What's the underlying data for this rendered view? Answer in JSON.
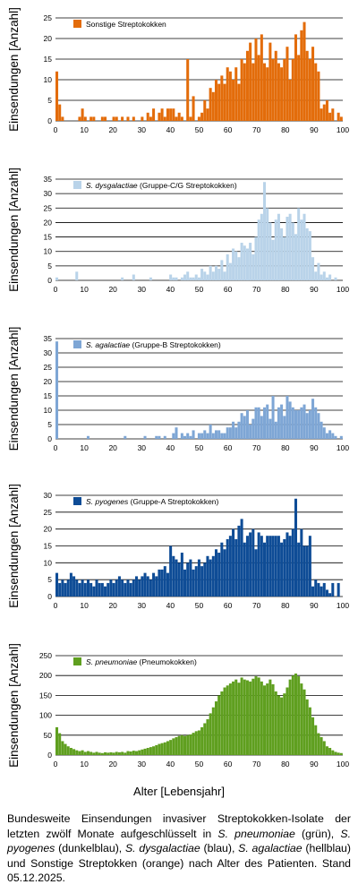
{
  "colors": {
    "orange": "#E36C0A",
    "lightblue": "#B9D3E9",
    "midblue": "#7EA6D5",
    "darkblue": "#0E4C96",
    "green": "#5F9F1F",
    "grid": "#000000",
    "text": "#000000"
  },
  "figure": {
    "x_axis_title": "Alter [Lebensjahr]"
  },
  "caption": {
    "intro": "Bundesweite Einsendungen invasiver Streptokokken-Isolate der letzten zwölf Monate aufgeschlüsselt in ",
    "sp1": "S. pneumoniae",
    "t1": " (grün), ",
    "sp2": "S. pyogenes",
    "t2": " (dunkelblau), ",
    "sp3": "S. dysgalactiae",
    "t3": " (blau), ",
    "sp4": "S. agalactiae",
    "t4": " (hellblau) und Sonstige Streptokken (orange) nach Alter des Patienten. Stand 05.12.2025."
  },
  "chart_data": [
    {
      "type": "bar",
      "color": "#E36C0A",
      "legend": {
        "italic": "",
        "normal": "Sonstige Streptokokken"
      },
      "ylabel": "Einsendungen [Anzahl]",
      "xlim": [
        0,
        100
      ],
      "ylim": [
        0,
        25
      ],
      "yticks": [
        0,
        5,
        10,
        15,
        20,
        25
      ],
      "xticks": [
        0,
        10,
        20,
        30,
        40,
        50,
        60,
        70,
        80,
        90,
        100
      ],
      "x": [
        0,
        1,
        2,
        3,
        4,
        5,
        6,
        7,
        8,
        9,
        10,
        11,
        12,
        13,
        14,
        15,
        16,
        17,
        18,
        19,
        20,
        21,
        22,
        23,
        24,
        25,
        26,
        27,
        28,
        29,
        30,
        31,
        32,
        33,
        34,
        35,
        36,
        37,
        38,
        39,
        40,
        41,
        42,
        43,
        44,
        45,
        46,
        47,
        48,
        49,
        50,
        51,
        52,
        53,
        54,
        55,
        56,
        57,
        58,
        59,
        60,
        61,
        62,
        63,
        64,
        65,
        66,
        67,
        68,
        69,
        70,
        71,
        72,
        73,
        74,
        75,
        76,
        77,
        78,
        79,
        80,
        81,
        82,
        83,
        84,
        85,
        86,
        87,
        88,
        89,
        90,
        91,
        92,
        93,
        94,
        95,
        96,
        97,
        98,
        99,
        100
      ],
      "values": [
        12,
        4,
        1,
        0,
        0,
        0,
        0,
        0,
        1,
        3,
        1,
        0,
        1,
        1,
        0,
        0,
        1,
        1,
        0,
        0,
        1,
        1,
        0,
        1,
        0,
        1,
        0,
        1,
        0,
        0,
        1,
        0,
        2,
        1,
        3,
        0,
        2,
        3,
        1,
        3,
        3,
        3,
        1,
        2,
        1,
        0,
        15,
        1,
        6,
        0,
        1,
        2,
        5,
        3,
        8,
        7,
        10,
        9,
        11,
        9,
        13,
        12,
        10,
        13,
        9,
        15,
        14,
        17,
        19,
        14,
        20,
        16,
        21,
        14,
        13,
        19,
        15,
        17,
        14,
        13,
        15,
        18,
        10,
        15,
        21,
        16,
        22,
        24,
        17,
        15,
        18,
        14,
        12,
        3,
        4,
        5,
        2,
        3,
        0,
        2,
        1
      ]
    },
    {
      "type": "bar",
      "color": "#B9D3E9",
      "legend": {
        "italic": "S. dysgalactiae",
        "normal": " (Gruppe-C/G Streptokokken)"
      },
      "ylabel": "Einsendungen [Anzahl]",
      "xlim": [
        0,
        100
      ],
      "ylim": [
        0,
        35
      ],
      "yticks": [
        0,
        5,
        10,
        15,
        20,
        25,
        30,
        35
      ],
      "xticks": [
        0,
        10,
        20,
        30,
        40,
        50,
        60,
        70,
        80,
        90,
        100
      ],
      "x": [
        0,
        1,
        2,
        3,
        4,
        5,
        6,
        7,
        8,
        9,
        10,
        11,
        12,
        13,
        14,
        15,
        16,
        17,
        18,
        19,
        20,
        21,
        22,
        23,
        24,
        25,
        26,
        27,
        28,
        29,
        30,
        31,
        32,
        33,
        34,
        35,
        36,
        37,
        38,
        39,
        40,
        41,
        42,
        43,
        44,
        45,
        46,
        47,
        48,
        49,
        50,
        51,
        52,
        53,
        54,
        55,
        56,
        57,
        58,
        59,
        60,
        61,
        62,
        63,
        64,
        65,
        66,
        67,
        68,
        69,
        70,
        71,
        72,
        73,
        74,
        75,
        76,
        77,
        78,
        79,
        80,
        81,
        82,
        83,
        84,
        85,
        86,
        87,
        88,
        89,
        90,
        91,
        92,
        93,
        94,
        95,
        96,
        97,
        98,
        99,
        100
      ],
      "values": [
        1,
        0,
        0,
        0,
        0,
        0,
        0,
        3,
        0,
        0,
        0,
        0,
        0,
        0,
        0,
        0,
        0,
        0,
        0,
        0,
        0,
        0,
        0,
        1,
        0,
        0,
        0,
        2,
        0,
        0,
        0,
        0,
        0,
        1,
        0,
        0,
        0,
        0,
        0,
        0,
        2,
        1,
        1,
        0,
        1,
        2,
        3,
        1,
        1,
        2,
        1,
        4,
        3,
        2,
        5,
        3,
        5,
        4,
        7,
        3,
        9,
        6,
        11,
        10,
        8,
        13,
        12,
        11,
        13,
        9,
        15,
        21,
        23,
        34,
        25,
        20,
        14,
        21,
        23,
        18,
        15,
        22,
        23,
        20,
        16,
        25,
        21,
        23,
        18,
        17,
        8,
        3,
        6,
        2,
        3,
        1,
        2,
        0,
        1,
        0,
        0
      ]
    },
    {
      "type": "bar",
      "color": "#7EA6D5",
      "legend": {
        "italic": "S. agalactiae",
        "normal": " (Gruppe-B Streptokokken)"
      },
      "ylabel": "Einsendungen [Anzahl]",
      "xlim": [
        0,
        100
      ],
      "ylim": [
        0,
        35
      ],
      "yticks": [
        0,
        5,
        10,
        15,
        20,
        25,
        30,
        35
      ],
      "xticks": [
        0,
        10,
        20,
        30,
        40,
        50,
        60,
        70,
        80,
        90,
        100
      ],
      "x": [
        0,
        1,
        2,
        3,
        4,
        5,
        6,
        7,
        8,
        9,
        10,
        11,
        12,
        13,
        14,
        15,
        16,
        17,
        18,
        19,
        20,
        21,
        22,
        23,
        24,
        25,
        26,
        27,
        28,
        29,
        30,
        31,
        32,
        33,
        34,
        35,
        36,
        37,
        38,
        39,
        40,
        41,
        42,
        43,
        44,
        45,
        46,
        47,
        48,
        49,
        50,
        51,
        52,
        53,
        54,
        55,
        56,
        57,
        58,
        59,
        60,
        61,
        62,
        63,
        64,
        65,
        66,
        67,
        68,
        69,
        70,
        71,
        72,
        73,
        74,
        75,
        76,
        77,
        78,
        79,
        80,
        81,
        82,
        83,
        84,
        85,
        86,
        87,
        88,
        89,
        90,
        91,
        92,
        93,
        94,
        95,
        96,
        97,
        98,
        99,
        100
      ],
      "values": [
        34,
        0,
        0,
        0,
        0,
        0,
        0,
        0,
        0,
        0,
        0,
        1,
        0,
        0,
        0,
        0,
        0,
        0,
        0,
        0,
        0,
        0,
        0,
        0,
        1,
        0,
        0,
        0,
        0,
        0,
        0,
        1,
        0,
        0,
        0,
        1,
        1,
        0,
        1,
        0,
        0,
        2,
        4,
        0,
        2,
        1,
        2,
        1,
        3,
        0,
        2,
        2,
        3,
        2,
        5,
        2,
        3,
        3,
        2,
        2,
        4,
        4,
        6,
        4,
        6,
        9,
        8,
        10,
        5,
        7,
        11,
        11,
        8,
        11,
        12,
        7,
        15,
        6,
        11,
        12,
        8,
        15,
        13,
        11,
        10,
        10,
        11,
        12,
        9,
        10,
        14,
        11,
        9,
        6,
        4,
        2,
        3,
        2,
        1,
        0,
        1
      ]
    },
    {
      "type": "bar",
      "color": "#0E4C96",
      "legend": {
        "italic": "S. pyogenes",
        "normal": " (Gruppe-A Streptokokken)"
      },
      "ylabel": "Einsendungen [Anzahl]",
      "xlim": [
        0,
        100
      ],
      "ylim": [
        0,
        30
      ],
      "yticks": [
        0,
        5,
        10,
        15,
        20,
        25,
        30
      ],
      "xticks": [
        0,
        10,
        20,
        30,
        40,
        50,
        60,
        70,
        80,
        90,
        100
      ],
      "x": [
        0,
        1,
        2,
        3,
        4,
        5,
        6,
        7,
        8,
        9,
        10,
        11,
        12,
        13,
        14,
        15,
        16,
        17,
        18,
        19,
        20,
        21,
        22,
        23,
        24,
        25,
        26,
        27,
        28,
        29,
        30,
        31,
        32,
        33,
        34,
        35,
        36,
        37,
        38,
        39,
        40,
        41,
        42,
        43,
        44,
        45,
        46,
        47,
        48,
        49,
        50,
        51,
        52,
        53,
        54,
        55,
        56,
        57,
        58,
        59,
        60,
        61,
        62,
        63,
        64,
        65,
        66,
        67,
        68,
        69,
        70,
        71,
        72,
        73,
        74,
        75,
        76,
        77,
        78,
        79,
        80,
        81,
        82,
        83,
        84,
        85,
        86,
        87,
        88,
        89,
        90,
        91,
        92,
        93,
        94,
        95,
        96,
        97,
        98,
        99,
        100
      ],
      "values": [
        7,
        4,
        5,
        4,
        5,
        7,
        6,
        5,
        4,
        5,
        4,
        5,
        4,
        3,
        5,
        4,
        4,
        3,
        4,
        5,
        4,
        5,
        6,
        5,
        4,
        5,
        4,
        5,
        6,
        5,
        6,
        7,
        6,
        5,
        7,
        6,
        8,
        8,
        9,
        7,
        15,
        12,
        11,
        10,
        13,
        8,
        10,
        11,
        8,
        9,
        11,
        9,
        10,
        12,
        11,
        12,
        14,
        13,
        16,
        14,
        17,
        18,
        20,
        17,
        21,
        23,
        16,
        18,
        19,
        20,
        14,
        19,
        18,
        16,
        18,
        18,
        18,
        18,
        18,
        16,
        17,
        19,
        18,
        20,
        29,
        16,
        20,
        15,
        15,
        18,
        3,
        5,
        4,
        3,
        4,
        2,
        1,
        4,
        0,
        4,
        0
      ]
    },
    {
      "type": "bar",
      "color": "#5F9F1F",
      "legend": {
        "italic": "S. pneumoniae",
        "normal": " (Pneumokokken)"
      },
      "ylabel": "Einsendungen [Anzahl]",
      "xlim": [
        0,
        100
      ],
      "ylim": [
        0,
        250
      ],
      "yticks": [
        0,
        50,
        100,
        150,
        200,
        250
      ],
      "xticks": [
        0,
        10,
        20,
        30,
        40,
        50,
        60,
        70,
        80,
        90,
        100
      ],
      "x": [
        0,
        1,
        2,
        3,
        4,
        5,
        6,
        7,
        8,
        9,
        10,
        11,
        12,
        13,
        14,
        15,
        16,
        17,
        18,
        19,
        20,
        21,
        22,
        23,
        24,
        25,
        26,
        27,
        28,
        29,
        30,
        31,
        32,
        33,
        34,
        35,
        36,
        37,
        38,
        39,
        40,
        41,
        42,
        43,
        44,
        45,
        46,
        47,
        48,
        49,
        50,
        51,
        52,
        53,
        54,
        55,
        56,
        57,
        58,
        59,
        60,
        61,
        62,
        63,
        64,
        65,
        66,
        67,
        68,
        69,
        70,
        71,
        72,
        73,
        74,
        75,
        76,
        77,
        78,
        79,
        80,
        81,
        82,
        83,
        84,
        85,
        86,
        87,
        88,
        89,
        90,
        91,
        92,
        93,
        94,
        95,
        96,
        97,
        98,
        99,
        100
      ],
      "values": [
        70,
        55,
        35,
        28,
        22,
        18,
        15,
        12,
        10,
        12,
        8,
        10,
        8,
        6,
        8,
        6,
        5,
        7,
        6,
        7,
        6,
        8,
        7,
        8,
        6,
        10,
        9,
        11,
        10,
        12,
        14,
        16,
        18,
        20,
        22,
        25,
        28,
        30,
        32,
        35,
        38,
        42,
        45,
        48,
        50,
        48,
        50,
        52,
        56,
        60,
        62,
        70,
        80,
        90,
        105,
        120,
        135,
        150,
        160,
        170,
        175,
        180,
        185,
        190,
        182,
        195,
        190,
        188,
        185,
        192,
        198,
        195,
        185,
        175,
        180,
        190,
        178,
        160,
        150,
        145,
        155,
        170,
        190,
        200,
        205,
        198,
        180,
        165,
        140,
        120,
        95,
        75,
        55,
        45,
        35,
        22,
        18,
        12,
        8,
        6,
        5
      ]
    }
  ]
}
